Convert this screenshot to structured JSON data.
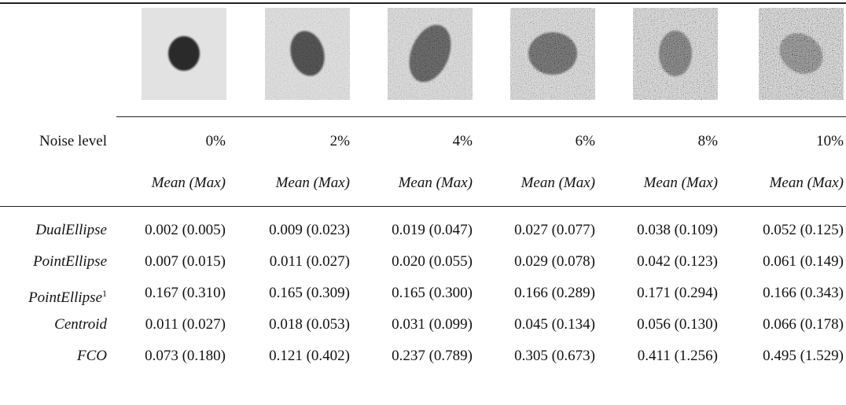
{
  "header": {
    "noise_label": "Noise level",
    "levels": [
      "0%",
      "2%",
      "4%",
      "6%",
      "8%",
      "10%"
    ],
    "stat_labels": [
      "Mean (Max)",
      "Mean (Max)",
      "Mean (Max)",
      "Mean (Max)",
      "Mean (Max)",
      "Mean (Max)"
    ]
  },
  "table": {
    "rows": [
      {
        "label": "DualEllipse",
        "cells": [
          "0.002 (0.005)",
          "0.009 (0.023)",
          "0.019 (0.047)",
          "0.027 (0.077)",
          "0.038 (0.109)",
          "0.052 (0.125)"
        ]
      },
      {
        "label": "PointEllipse",
        "cells": [
          "0.007 (0.015)",
          "0.011 (0.027)",
          "0.020 (0.055)",
          "0.029 (0.078)",
          "0.042 (0.123)",
          "0.061 (0.149)"
        ]
      },
      {
        "label": "PointEllipse",
        "note": "1",
        "cells": [
          "0.167 (0.310)",
          "0.165 (0.309)",
          "0.165 (0.300)",
          "0.166 (0.289)",
          "0.171 (0.294)",
          "0.166 (0.343)"
        ]
      },
      {
        "label": "Centroid",
        "cells": [
          "0.011 (0.027)",
          "0.018 (0.053)",
          "0.031 (0.099)",
          "0.045 (0.134)",
          "0.056 (0.130)",
          "0.066 (0.178)"
        ]
      },
      {
        "label": "FCO",
        "cells": [
          "0.073 (0.180)",
          "0.121 (0.402)",
          "0.237 (0.789)",
          "0.305 (0.673)",
          "0.411 (1.256)",
          "0.495 (1.529)"
        ]
      }
    ]
  }
}
